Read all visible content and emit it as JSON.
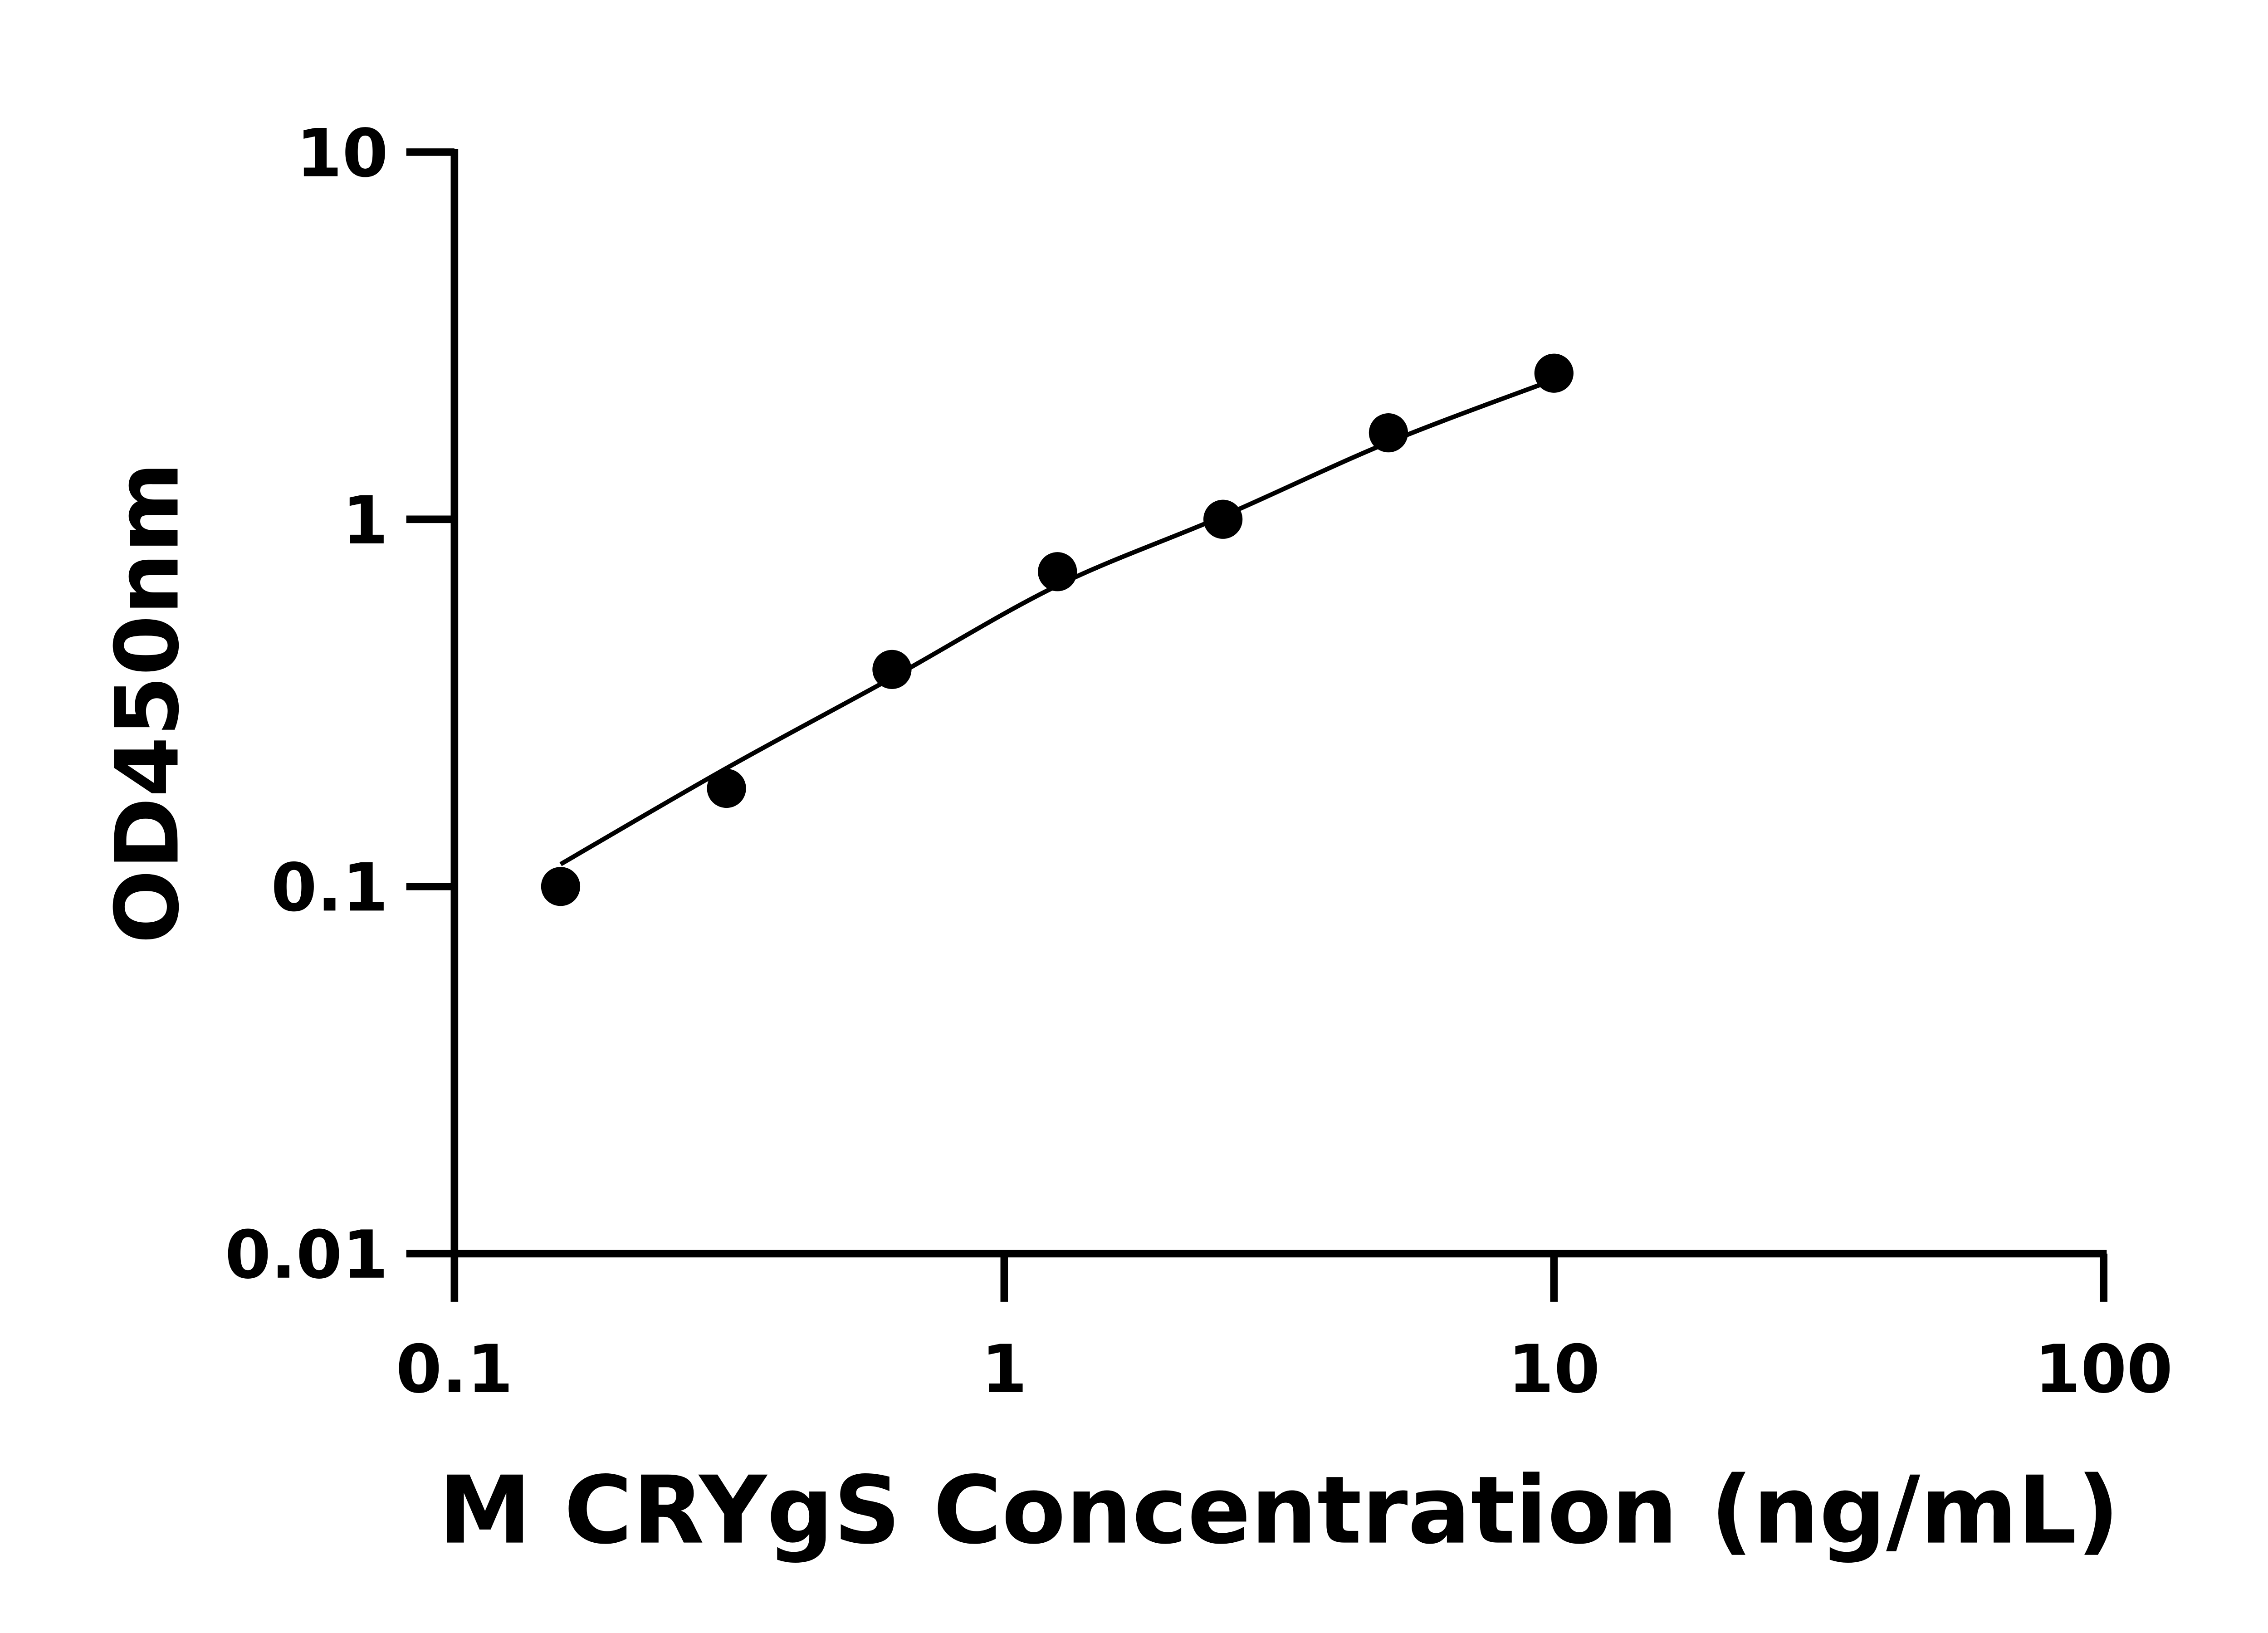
{
  "chart_data": {
    "type": "scatter",
    "title": "",
    "xlabel": "M CRYgS Concentration (ng/mL)",
    "ylabel": "OD450nm",
    "xscale": "log",
    "yscale": "log",
    "xlim": [
      0.1,
      100
    ],
    "ylim": [
      0.01,
      10
    ],
    "xticks": [
      "0.1",
      "1",
      "10",
      "100"
    ],
    "yticks": [
      "0.01",
      "0.1",
      "1",
      "10"
    ],
    "grid": false,
    "legend": "none",
    "series": [
      {
        "x": [
          0.156,
          0.3125,
          0.625,
          1.25,
          2.5,
          5,
          10
        ],
        "y": [
          0.1,
          0.185,
          0.39,
          0.72,
          1.0,
          1.72,
          2.5
        ],
        "marker": "filled-circle",
        "color": "#000000"
      }
    ],
    "fit_curve": {
      "x": [
        0.156,
        0.3125,
        0.625,
        1.25,
        2.5,
        5,
        10
      ],
      "y": [
        0.115,
        0.21,
        0.37,
        0.66,
        1.02,
        1.62,
        2.4
      ],
      "color": "#000000"
    }
  }
}
